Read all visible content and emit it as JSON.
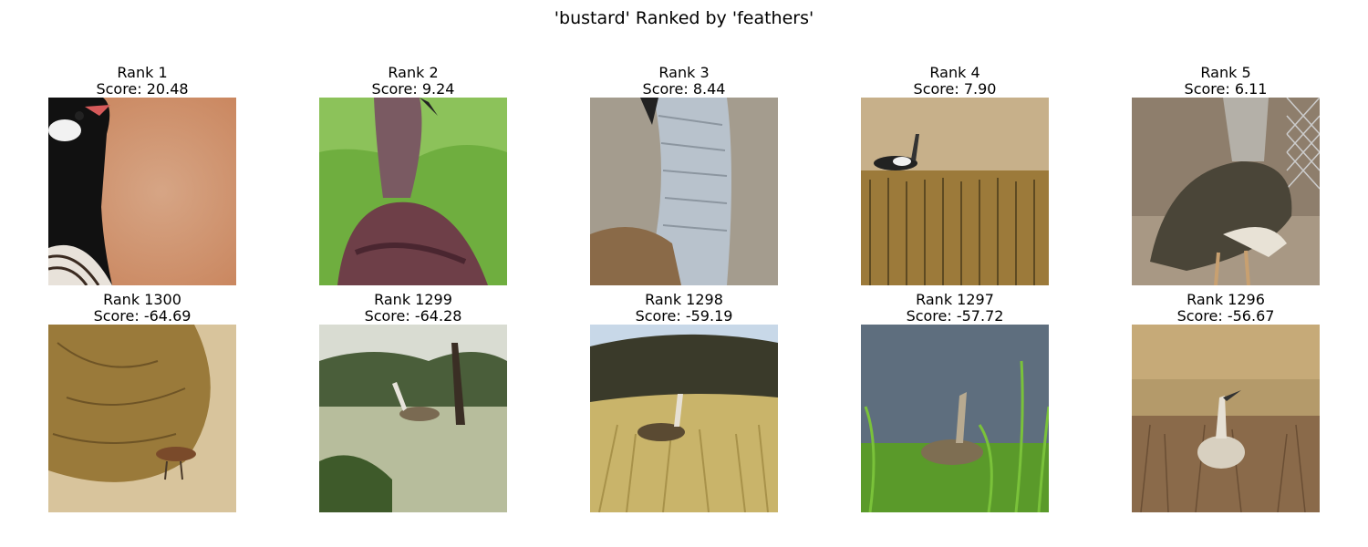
{
  "figure": {
    "title": "'bustard' Ranked by 'feathers'"
  },
  "top": [
    {
      "rank": "Rank 1",
      "score": "Score: 20.48",
      "scene": "bustard head close-up against blurred orange background"
    },
    {
      "rank": "Rank 2",
      "score": "Score: 9.24",
      "scene": "bustard neck and maroon back in green grass"
    },
    {
      "rank": "Rank 3",
      "score": "Score: 8.44",
      "scene": "close-up of grey barred neck feathers"
    },
    {
      "rank": "Rank 4",
      "score": "Score: 7.90",
      "scene": "bustard in stubble field"
    },
    {
      "rank": "Rank 5",
      "score": "Score: 6.11",
      "scene": "large bustard from behind near fence"
    }
  ],
  "bottom": [
    {
      "rank": "Rank 1300",
      "score": "Score: -64.69",
      "scene": "bustard under dry bush on sand"
    },
    {
      "rank": "Rank 1299",
      "score": "Score: -64.28",
      "scene": "bustard in savanna with trees"
    },
    {
      "rank": "Rank 1298",
      "score": "Score: -59.19",
      "scene": "bustard in tall golden grass"
    },
    {
      "rank": "Rank 1297",
      "score": "Score: -57.72",
      "scene": "bustard in green grass, cloudy sky"
    },
    {
      "rank": "Rank 1296",
      "score": "Score: -56.67",
      "scene": "bustard in dry brown grassland"
    }
  ]
}
